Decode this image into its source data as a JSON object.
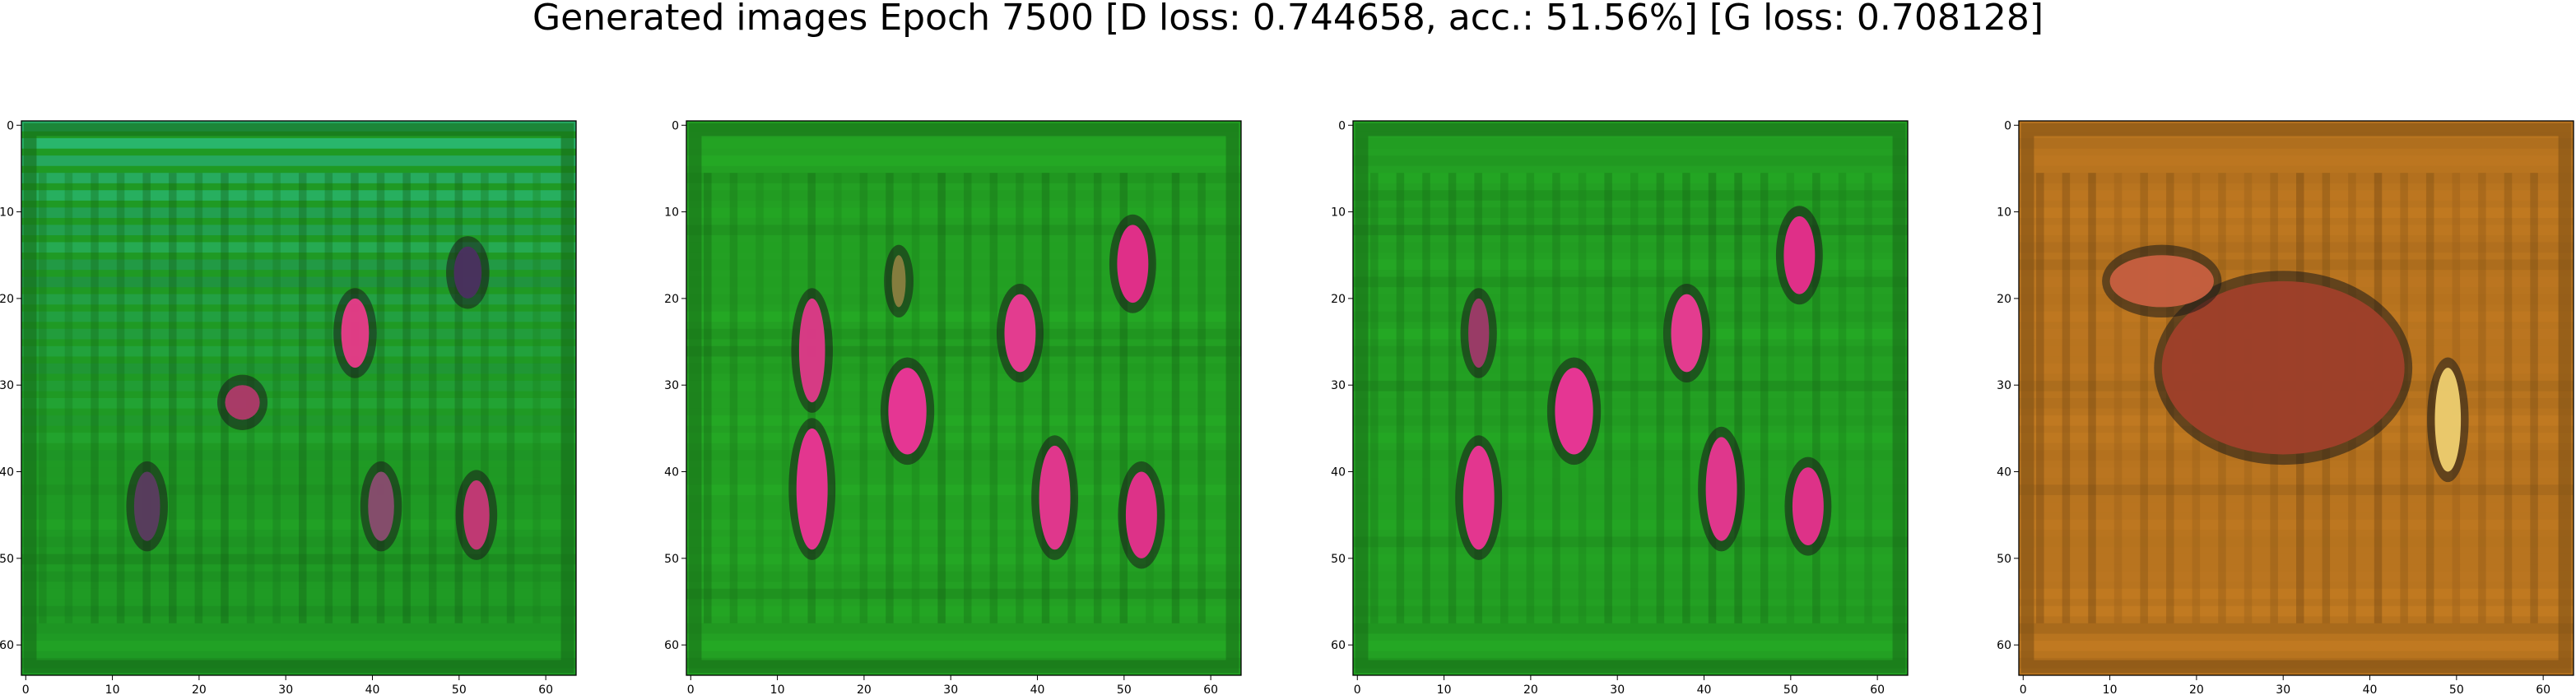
{
  "title": "Generated images Epoch 7500 [D loss: 0.744658, acc.: 51.56%] [G loss: 0.708128]",
  "chart_data": [
    {
      "type": "heatmap",
      "title": "",
      "xlabel": "",
      "ylabel": "",
      "xlim": [
        -0.5,
        63.5
      ],
      "ylim": [
        63.5,
        -0.5
      ],
      "xticks": [
        "0",
        "10",
        "20",
        "30",
        "40",
        "50",
        "60"
      ],
      "yticks": [
        "0",
        "10",
        "20",
        "30",
        "40",
        "50",
        "60"
      ],
      "base_color": "#1f9a24",
      "tint_color": "#34c9c9",
      "blobs": [
        {
          "x": 38,
          "y": 24,
          "rx": 1.6,
          "ry": 4,
          "color": "#e93c8a"
        },
        {
          "x": 51,
          "y": 17,
          "rx": 1.6,
          "ry": 3,
          "color": "#4b3060"
        },
        {
          "x": 25,
          "y": 32,
          "rx": 2,
          "ry": 2,
          "color": "#b03a6a"
        },
        {
          "x": 14,
          "y": 44,
          "rx": 1.5,
          "ry": 4,
          "color": "#5b3c60"
        },
        {
          "x": 41,
          "y": 44,
          "rx": 1.5,
          "ry": 4,
          "color": "#8a4d70"
        },
        {
          "x": 52,
          "y": 45,
          "rx": 1.5,
          "ry": 4,
          "color": "#c83878"
        }
      ]
    },
    {
      "type": "heatmap",
      "title": "",
      "xlabel": "",
      "ylabel": "",
      "xlim": [
        -0.5,
        63.5
      ],
      "ylim": [
        63.5,
        -0.5
      ],
      "xticks": [
        "0",
        "10",
        "20",
        "30",
        "40",
        "50",
        "60"
      ],
      "yticks": [
        "0",
        "10",
        "20",
        "30",
        "40",
        "50",
        "60"
      ],
      "base_color": "#23a023",
      "tint_color": "#23a023",
      "blobs": [
        {
          "x": 51,
          "y": 16,
          "rx": 1.8,
          "ry": 4.5,
          "color": "#ea2d8e"
        },
        {
          "x": 24,
          "y": 18,
          "rx": 0.8,
          "ry": 3,
          "color": "#8a8040"
        },
        {
          "x": 14,
          "y": 26,
          "rx": 1.5,
          "ry": 6,
          "color": "#e03a8a"
        },
        {
          "x": 38,
          "y": 24,
          "rx": 1.8,
          "ry": 4.5,
          "color": "#ee3b96"
        },
        {
          "x": 25,
          "y": 33,
          "rx": 2.2,
          "ry": 5,
          "color": "#f0359a"
        },
        {
          "x": 14,
          "y": 42,
          "rx": 1.8,
          "ry": 7,
          "color": "#ee3596"
        },
        {
          "x": 42,
          "y": 43,
          "rx": 1.8,
          "ry": 6,
          "color": "#ea3692"
        },
        {
          "x": 52,
          "y": 45,
          "rx": 1.8,
          "ry": 5,
          "color": "#e8308e"
        }
      ]
    },
    {
      "type": "heatmap",
      "title": "",
      "xlabel": "",
      "ylabel": "",
      "xlim": [
        -0.5,
        63.5
      ],
      "ylim": [
        63.5,
        -0.5
      ],
      "xticks": [
        "0",
        "10",
        "20",
        "30",
        "40",
        "50",
        "60"
      ],
      "yticks": [
        "0",
        "10",
        "20",
        "30",
        "40",
        "50",
        "60"
      ],
      "base_color": "#23a023",
      "tint_color": "#23a023",
      "blobs": [
        {
          "x": 51,
          "y": 15,
          "rx": 1.8,
          "ry": 4.5,
          "color": "#ea2d8e"
        },
        {
          "x": 14,
          "y": 24,
          "rx": 1.2,
          "ry": 4,
          "color": "#a03a6a"
        },
        {
          "x": 38,
          "y": 24,
          "rx": 1.8,
          "ry": 4.5,
          "color": "#ee3b96"
        },
        {
          "x": 25,
          "y": 33,
          "rx": 2.2,
          "ry": 5,
          "color": "#f0359a"
        },
        {
          "x": 14,
          "y": 43,
          "rx": 1.8,
          "ry": 6,
          "color": "#ee3596"
        },
        {
          "x": 42,
          "y": 42,
          "rx": 1.8,
          "ry": 6,
          "color": "#ea3692"
        },
        {
          "x": 52,
          "y": 44,
          "rx": 1.8,
          "ry": 4.5,
          "color": "#e8308e"
        }
      ]
    },
    {
      "type": "heatmap",
      "title": "",
      "xlabel": "",
      "ylabel": "",
      "xlim": [
        -0.5,
        63.5
      ],
      "ylim": [
        63.5,
        -0.5
      ],
      "xticks": [
        "0",
        "10",
        "20",
        "30",
        "40",
        "50",
        "60"
      ],
      "yticks": [
        "0",
        "10",
        "20",
        "30",
        "40",
        "50",
        "60"
      ],
      "base_color": "#b8741f",
      "tint_color": "#c98a2a",
      "blobs": [
        {
          "x": 49,
          "y": 34,
          "rx": 1.5,
          "ry": 6,
          "color": "#f0d070"
        },
        {
          "x": 30,
          "y": 28,
          "rx": 14,
          "ry": 10,
          "color": "#a0402a"
        },
        {
          "x": 16,
          "y": 18,
          "rx": 6,
          "ry": 3,
          "color": "#c86040"
        }
      ]
    }
  ]
}
